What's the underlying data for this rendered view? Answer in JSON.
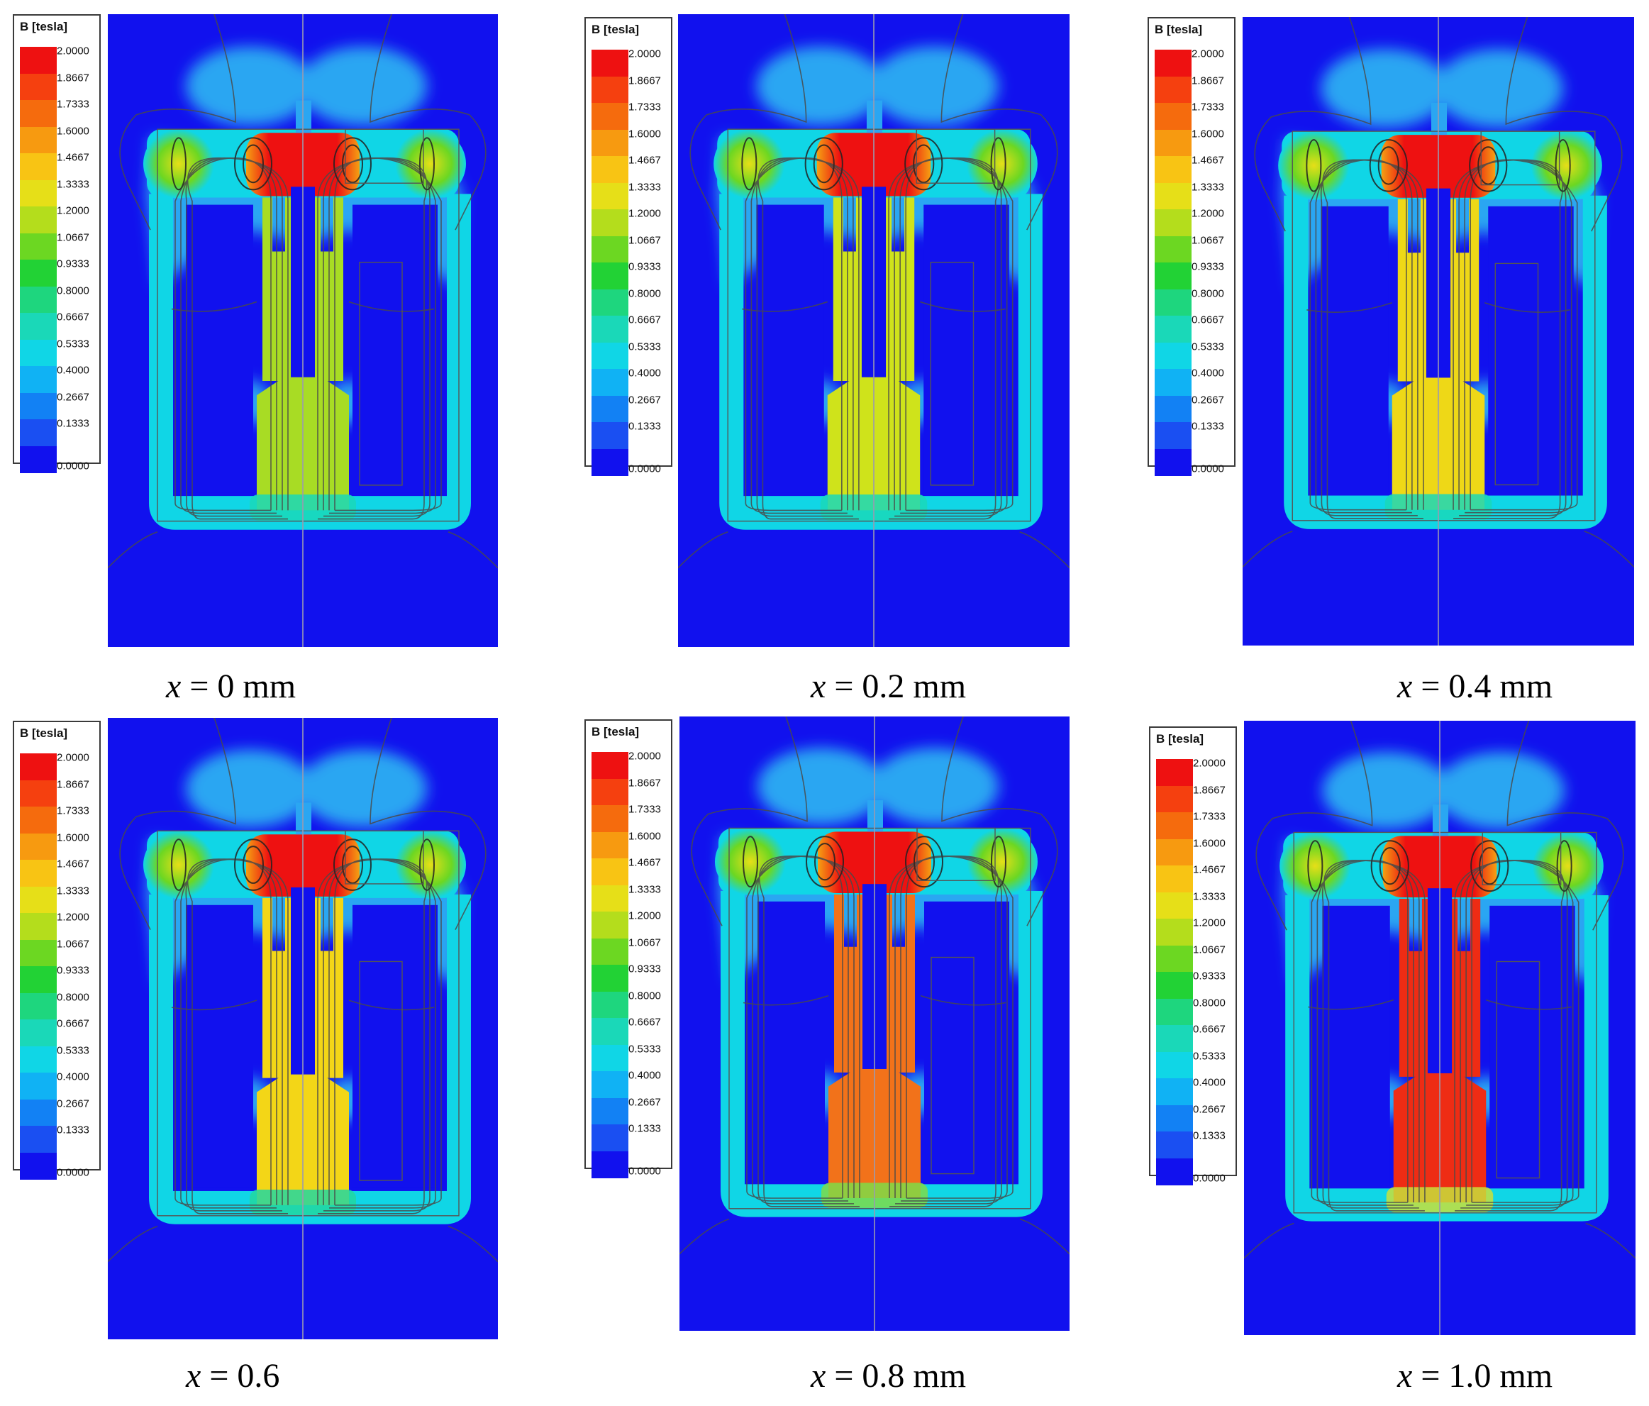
{
  "legend": {
    "title": "B [tesla]",
    "ticks": [
      "2.0000",
      "1.8667",
      "1.7333",
      "1.6000",
      "1.4667",
      "1.3333",
      "1.2000",
      "1.0667",
      "0.9333",
      "0.8000",
      "0.6667",
      "0.5333",
      "0.4000",
      "0.2667",
      "0.1333",
      "0.0000"
    ],
    "colors": [
      "#ee1111",
      "#f5400f",
      "#f56b0d",
      "#f79a10",
      "#f8c414",
      "#e6df18",
      "#b4dd1c",
      "#6cd722",
      "#22d235",
      "#1ed67e",
      "#1ad8b8",
      "#10d6e6",
      "#10b2f4",
      "#1281f4",
      "#1a4ff2",
      "#1111ee"
    ]
  },
  "panels": [
    {
      "var": "x",
      "rest": " = 0 mm",
      "core_color": "#a8dc24",
      "bottom_color": "#1ad8b8"
    },
    {
      "var": "x",
      "rest": " = 0.2 mm",
      "core_color": "#cfe31b",
      "bottom_color": "#1ad8b8"
    },
    {
      "var": "x",
      "rest": " = 0.4 mm",
      "core_color": "#eed817",
      "bottom_color": "#1ad8b8"
    },
    {
      "var": "x",
      "rest": " = 0.6",
      "core_color": "#f3d617",
      "bottom_color": "#22d7a0"
    },
    {
      "var": "x",
      "rest": " = 0.8 mm",
      "core_color": "#f2721a",
      "bottom_color": "#7fdc48"
    },
    {
      "var": "x",
      "rest": " = 1.0 mm",
      "core_color": "#ee2c14",
      "bottom_color": "#c8e03a"
    }
  ],
  "colors": {
    "background_field": "#1111ee",
    "hot": "#ee1111",
    "warm": "#f5a012",
    "cyan": "#10d6e6",
    "light_blue": "#2aa6f2",
    "lines": "#4a4a4a"
  }
}
